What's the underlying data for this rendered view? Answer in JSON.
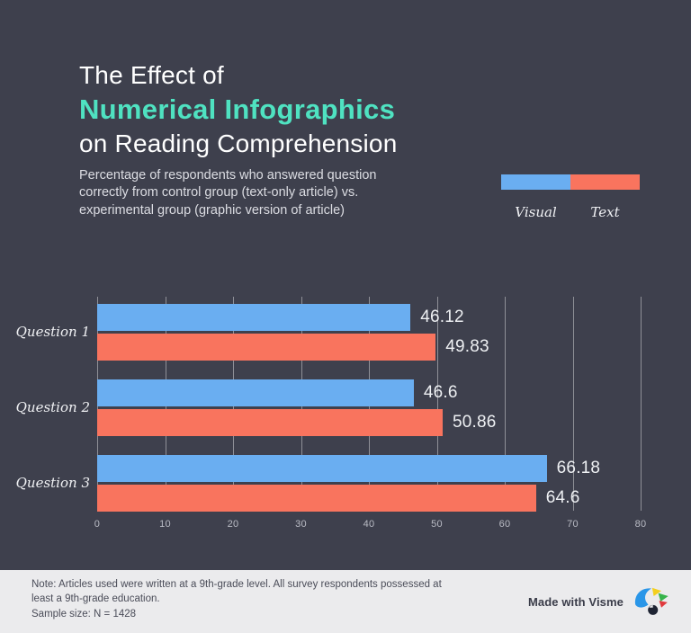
{
  "header": {
    "title_line1": "The Effect of",
    "title_line2": "Numerical Infographics",
    "title_line3": "on Reading Comprehension",
    "subtitle": "Percentage of respondents who answered question correctly from control group (text-only article) vs. experimental group (graphic version of article)"
  },
  "chart_data": {
    "type": "bar",
    "orientation": "horizontal",
    "categories": [
      "Question 1",
      "Question 2",
      "Question 3"
    ],
    "series": [
      {
        "name": "Visual",
        "color": "#6aaef1",
        "values": [
          46.12,
          46.6,
          66.18
        ]
      },
      {
        "name": "Text",
        "color": "#f9745e",
        "values": [
          49.83,
          50.86,
          64.6
        ]
      }
    ],
    "value_labels": [
      [
        "46.12",
        "46.6",
        "66.18"
      ],
      [
        "49.83",
        "50.86",
        "64.6"
      ]
    ],
    "xlim": [
      0,
      80
    ],
    "xticks": [
      "0",
      "10",
      "20",
      "30",
      "40",
      "50",
      "60",
      "70",
      "80"
    ],
    "grid": true,
    "legend_position": "top-right",
    "title": "The Effect of Numerical Infographics on Reading Comprehension"
  },
  "footer": {
    "note": "Note: Articles used were written at a 9th-grade level. All survey respondents possessed at least a 9th-grade education.\nSample size: N = 1428",
    "credit": "Made with Visme"
  },
  "colors": {
    "background": "#3e404d",
    "title_accent": "#4fe2c1",
    "series_visual": "#6aaef1",
    "series_text": "#f9745e",
    "footer_background": "#ebebed"
  }
}
